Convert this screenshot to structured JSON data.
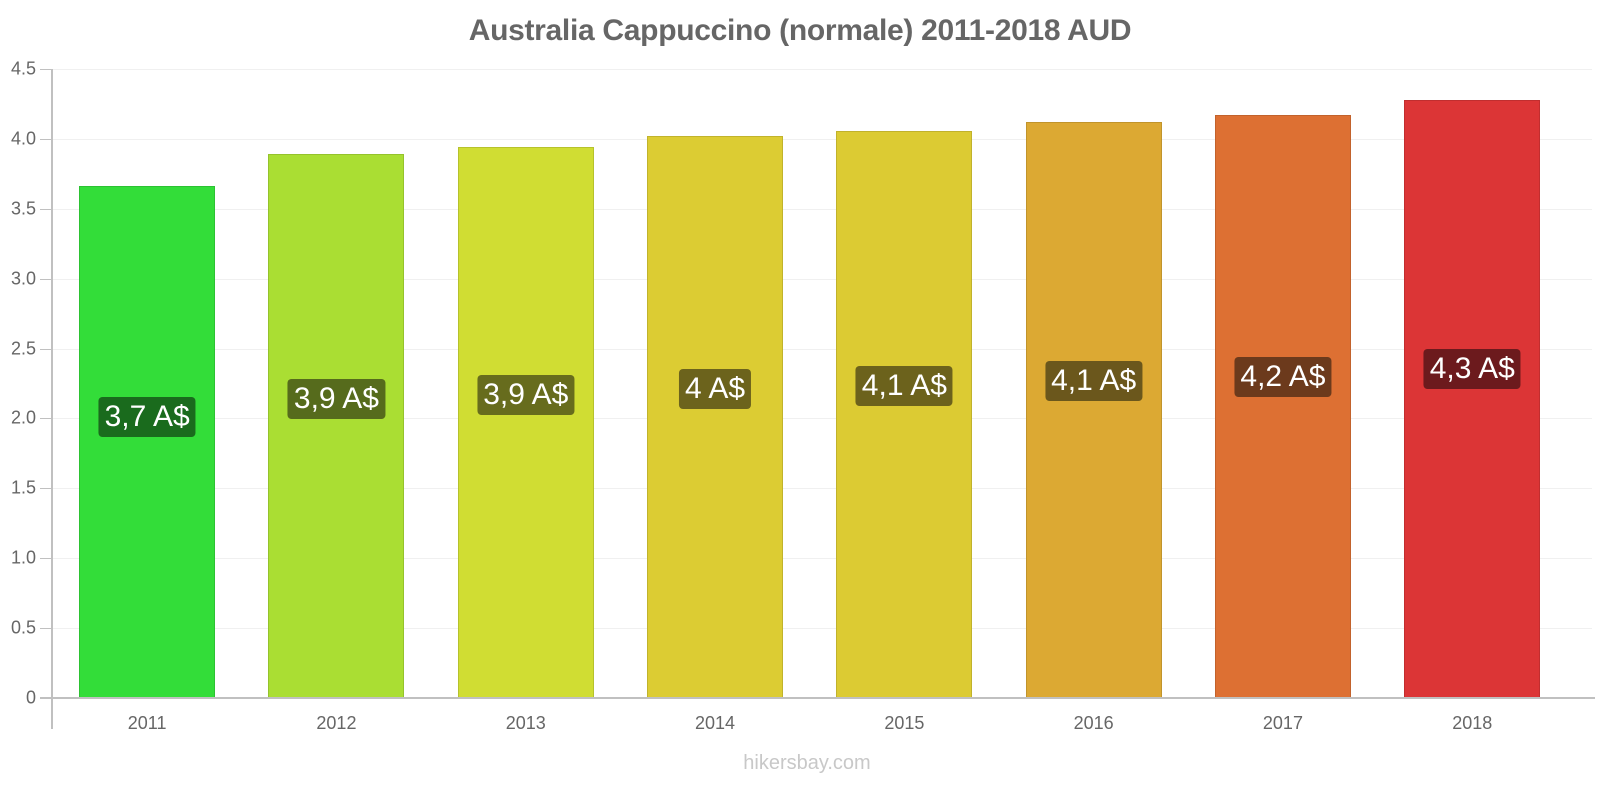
{
  "chart_data": {
    "type": "bar",
    "title": "Australia Cappuccino (normale) 2011-2018 AUD",
    "xlabel": "",
    "ylabel": "",
    "ylim": [
      0,
      4.5
    ],
    "yticks": [
      "0",
      "0.5",
      "1.0",
      "1.5",
      "2.0",
      "2.5",
      "3.0",
      "3.5",
      "4.0",
      "4.5"
    ],
    "grid": true,
    "legend": null,
    "categories": [
      "2011",
      "2012",
      "2013",
      "2014",
      "2015",
      "2016",
      "2017",
      "2018"
    ],
    "values": [
      3.66,
      3.89,
      3.94,
      4.02,
      4.06,
      4.12,
      4.17,
      4.28
    ],
    "data_labels": [
      "3,7 A$",
      "3,9 A$",
      "3,9 A$",
      "4 A$",
      "4,1 A$",
      "4,1 A$",
      "4,2 A$",
      "4,3 A$"
    ],
    "bar_colors": [
      "#33dd39",
      "#aade33",
      "#d0dd33",
      "#dccc33",
      "#dccb33",
      "#dca933",
      "#dd7033",
      "#dc3536"
    ],
    "label_bg_colors": [
      "#1a6b1d",
      "#566b1c",
      "#676c1d",
      "#6c631c",
      "#6c621c",
      "#6b571c",
      "#6c3a1c",
      "#6c1a1d"
    ]
  },
  "watermark": "hikersbay.com"
}
